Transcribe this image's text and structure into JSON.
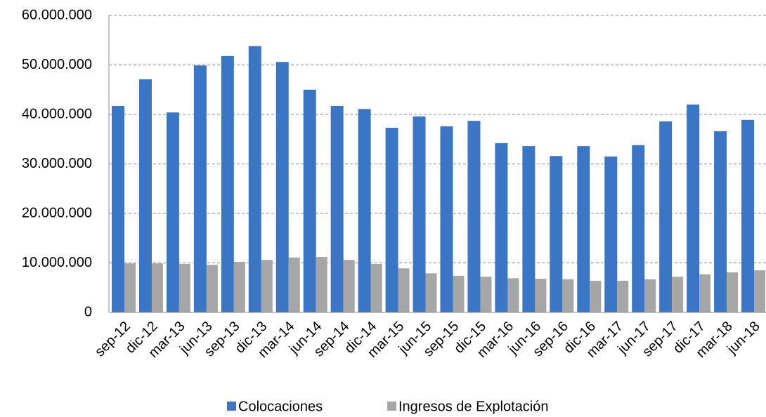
{
  "chart_data": {
    "type": "bar",
    "categories": [
      "sep-12",
      "dic-12",
      "mar-13",
      "jun-13",
      "sep-13",
      "dic-13",
      "mar-14",
      "jun-14",
      "sep-14",
      "dic-14",
      "mar-15",
      "jun-15",
      "sep-15",
      "dic-15",
      "mar-16",
      "jun-16",
      "sep-16",
      "dic-16",
      "mar-17",
      "jun-17",
      "sep-17",
      "dic-17",
      "mar-18",
      "jun-18"
    ],
    "series": [
      {
        "name": "Colocaciones",
        "color": "#3b76c6",
        "values": [
          41700000,
          47100000,
          40400000,
          49900000,
          51800000,
          53800000,
          50600000,
          45000000,
          41700000,
          41100000,
          37300000,
          39600000,
          37600000,
          38700000,
          34200000,
          33600000,
          31600000,
          33600000,
          31500000,
          33800000,
          38600000,
          42000000,
          36600000,
          38900000
        ]
      },
      {
        "name": "Ingresos de Explotación",
        "color": "#a6a6a6",
        "values": [
          9900000,
          9900000,
          9800000,
          9600000,
          10200000,
          10600000,
          11100000,
          11200000,
          10600000,
          9800000,
          8900000,
          7900000,
          7400000,
          7200000,
          6900000,
          6800000,
          6700000,
          6400000,
          6400000,
          6700000,
          7200000,
          7700000,
          8100000,
          8500000
        ]
      }
    ],
    "ylim": [
      0,
      60000000
    ],
    "yticks": [
      0,
      {
        "value": 10000000,
        "label": "10.000.000"
      },
      {
        "value": 20000000,
        "label": "20.000.000"
      },
      {
        "value": 30000000,
        "label": "30.000.000"
      },
      {
        "value": 40000000,
        "label": "40.000.000"
      },
      {
        "value": 50000000,
        "label": "50.000.000"
      },
      {
        "value": 60000000,
        "label": "60.000.000"
      }
    ],
    "grid": true,
    "legend": "bottom"
  }
}
